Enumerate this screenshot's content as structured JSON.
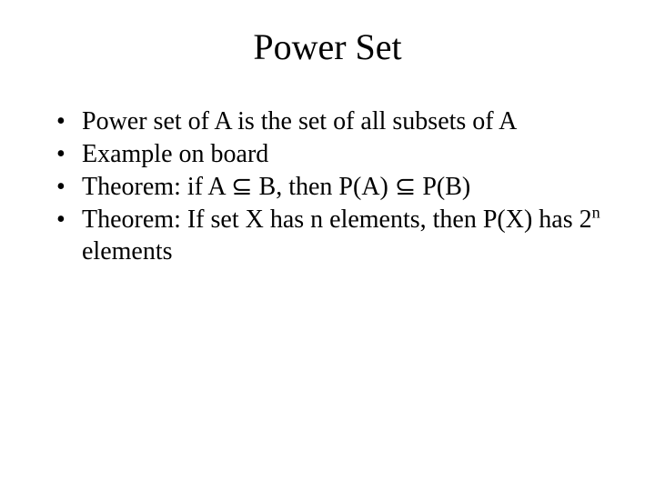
{
  "slide": {
    "title": "Power Set",
    "title_fontsize": 40,
    "body_fontsize": 28,
    "background_color": "#ffffff",
    "text_color": "#000000",
    "font_family": "Times New Roman",
    "bullets": [
      {
        "parts": [
          {
            "t": "Power set of A is the set of all subsets of A"
          }
        ]
      },
      {
        "parts": [
          {
            "t": "Example on board"
          }
        ]
      },
      {
        "parts": [
          {
            "t": "Theorem: if A "
          },
          {
            "t": "⊆",
            "sym": "subset"
          },
          {
            "t": " B, then P(A) "
          },
          {
            "t": "⊆",
            "sym": "subset"
          },
          {
            "t": " P(B)"
          }
        ]
      },
      {
        "parts": [
          {
            "t": "Theorem: If set X has n elements, then P(X) has 2"
          },
          {
            "t": "n",
            "sup": true
          },
          {
            "t": " elements"
          }
        ]
      }
    ]
  }
}
